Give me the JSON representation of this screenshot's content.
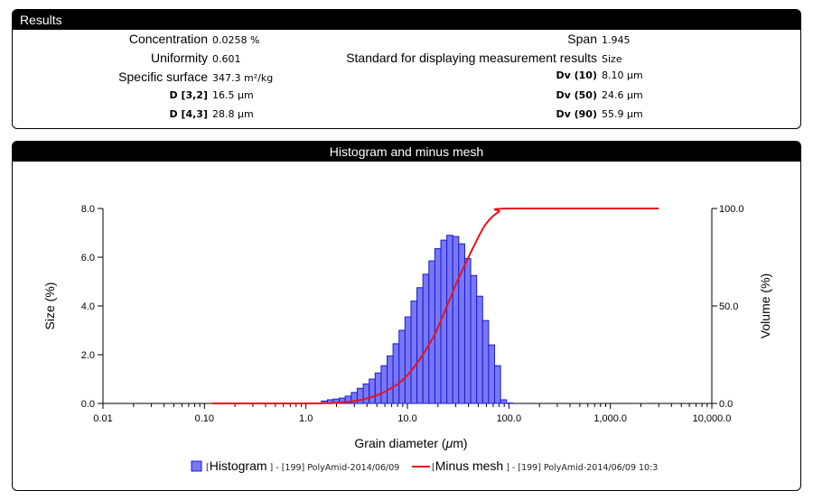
{
  "results": {
    "header": "Results",
    "left": [
      {
        "label": "Concentration",
        "value": "0.0258 %",
        "small": false
      },
      {
        "label": "Uniformity",
        "value": "0.601",
        "small": false
      },
      {
        "label": "Specific surface",
        "value": "347.3 m²/kg",
        "small": false
      },
      {
        "label": "D [3,2]",
        "value": "16.5 µm",
        "small": true
      },
      {
        "label": "D [4,3]",
        "value": "28.8 µm",
        "small": true
      }
    ],
    "right": [
      {
        "label": "Span",
        "value": "1.945",
        "small": false
      },
      {
        "label": "Standard for displaying measurement results",
        "value": "Size",
        "small": false
      },
      {
        "label": "Dv (10)",
        "value": "8.10 µm",
        "small": true
      },
      {
        "label": "Dv (50)",
        "value": "24.6 µm",
        "small": true
      },
      {
        "label": "Dv (90)",
        "value": "55.9 µm",
        "small": true
      }
    ]
  },
  "chart": {
    "header": "Histogram and minus mesh"
  },
  "colors": {
    "bar_fill": "#7878f6",
    "bar_stroke": "#1a1ad0",
    "line": "#e8131b"
  },
  "chart_data": {
    "type": "bar",
    "xlabel_prefix": "Grain diameter (",
    "xlabel_mu": "μ",
    "xlabel_suffix": "m)",
    "ylabel_left": "Size (%)",
    "ylabel_right": "Volume (%)",
    "x_scale": "log",
    "xlim": [
      0.01,
      10000
    ],
    "ylim_left": [
      0,
      8
    ],
    "ylim_right": [
      0,
      100
    ],
    "x_tick_labels": [
      {
        "v": 0.01,
        "label": "0.01"
      },
      {
        "v": 0.1,
        "label": "0.10"
      },
      {
        "v": 1,
        "label": "1.0"
      },
      {
        "v": 10,
        "label": "10.0"
      },
      {
        "v": 100,
        "label": "100.0"
      },
      {
        "v": 1000,
        "label": "1,000.0"
      },
      {
        "v": 10000,
        "label": "10,000.0"
      }
    ],
    "y_left_tick_labels": [
      {
        "v": 0,
        "label": "0.0"
      },
      {
        "v": 2,
        "label": "2.0"
      },
      {
        "v": 4,
        "label": "4.0"
      },
      {
        "v": 6,
        "label": "6.0"
      },
      {
        "v": 8,
        "label": "8.0"
      }
    ],
    "y_right_tick_labels": [
      {
        "v": 0,
        "label": "0.0"
      },
      {
        "v": 50,
        "label": "50.0"
      },
      {
        "v": 100,
        "label": "100.0"
      }
    ],
    "histogram": {
      "name": "Histogram",
      "bin_edges": [
        1.42,
        1.63,
        1.86,
        2.13,
        2.44,
        2.8,
        3.2,
        3.67,
        4.2,
        4.81,
        5.51,
        6.31,
        7.22,
        8.27,
        9.47,
        10.85,
        12.42,
        14.22,
        16.29,
        18.65,
        21.36,
        24.46,
        28.01,
        32.07,
        36.73,
        42.06,
        48.16,
        55.15,
        63.15,
        72.32,
        82.81,
        94.84,
        108.6
      ],
      "values": [
        0.1,
        0.15,
        0.18,
        0.22,
        0.3,
        0.45,
        0.62,
        0.8,
        1.0,
        1.25,
        1.55,
        1.95,
        2.45,
        3.0,
        3.55,
        4.2,
        4.75,
        5.3,
        5.85,
        6.35,
        6.7,
        6.9,
        6.85,
        6.55,
        5.95,
        5.25,
        4.4,
        3.4,
        2.4,
        1.55,
        0.15,
        0.02
      ]
    },
    "minus_mesh": {
      "name": "Minus mesh",
      "x": [
        0.12,
        0.5,
        1.0,
        1.5,
        2.0,
        3.0,
        4.0,
        5.0,
        6.0,
        7.0,
        8.1,
        10.0,
        12.0,
        15.0,
        18.0,
        20.0,
        24.6,
        30.0,
        36.0,
        45.0,
        55.9,
        65.0,
        80.0,
        100.0,
        3000.0
      ],
      "y": [
        0,
        0,
        0,
        0.1,
        0.3,
        1.2,
        2.6,
        4.2,
        6.0,
        8.0,
        10.0,
        14.5,
        19.5,
        27.0,
        34.0,
        39.0,
        50.0,
        61.0,
        70.0,
        80.5,
        90.0,
        94.5,
        98.3,
        100.0,
        100.0
      ]
    },
    "legend": {
      "histogram_label": "Histogram",
      "histogram_detail": "] - [199] PolyAmid-2014/06/09",
      "minus_mesh_label": "Minus mesh",
      "minus_mesh_detail": "] - [199] PolyAmid-2014/06/09 10:3"
    }
  }
}
